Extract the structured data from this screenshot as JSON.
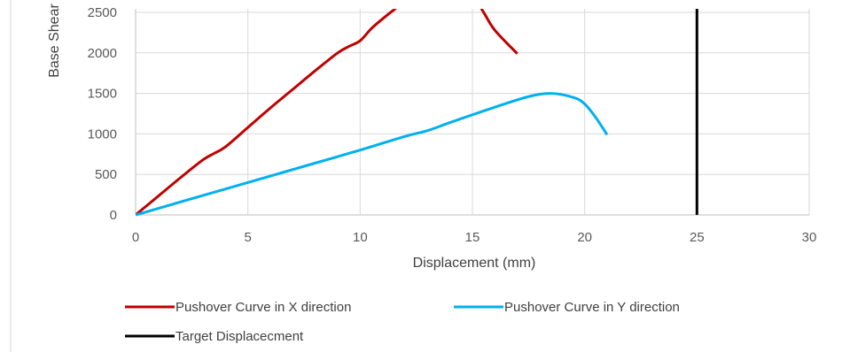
{
  "chart_data": {
    "type": "line",
    "xlabel": "Displacement (mm)",
    "ylabel": "Base Shear",
    "xlim": [
      0,
      30
    ],
    "ylim": [
      0,
      2500
    ],
    "xticks": [
      0,
      5,
      10,
      15,
      20,
      25,
      30
    ],
    "yticks": [
      0,
      500,
      1000,
      1500,
      2000,
      2500
    ],
    "grid": true,
    "legend_position": "bottom",
    "series": [
      {
        "name": "Pushover Curve in X direction",
        "color": "#C00000",
        "x": [
          0,
          1,
          2,
          3,
          3.5,
          4,
          5,
          6,
          7,
          8,
          9,
          9.5,
          10,
          10.5,
          11,
          11.5,
          12,
          14,
          15,
          15.5,
          16,
          17
        ],
        "y": [
          0,
          230,
          460,
          680,
          760,
          840,
          1080,
          1320,
          1550,
          1780,
          2000,
          2080,
          2150,
          2300,
          2420,
          2530,
          2620,
          2750,
          2700,
          2500,
          2280,
          1990
        ]
      },
      {
        "name": "Pushover Curve in Y direction",
        "color": "#00B0F0",
        "x": [
          0,
          2,
          4,
          6,
          8,
          10,
          12,
          13,
          14,
          16,
          17.5,
          18.5,
          19.5,
          20,
          20.5,
          21
        ],
        "y": [
          0,
          160,
          320,
          480,
          640,
          800,
          970,
          1040,
          1140,
          1330,
          1460,
          1500,
          1450,
          1370,
          1200,
          990
        ]
      },
      {
        "name": "Target Displacecment",
        "color": "#000000",
        "x": [
          25,
          25
        ],
        "y": [
          0,
          2600
        ]
      }
    ]
  }
}
